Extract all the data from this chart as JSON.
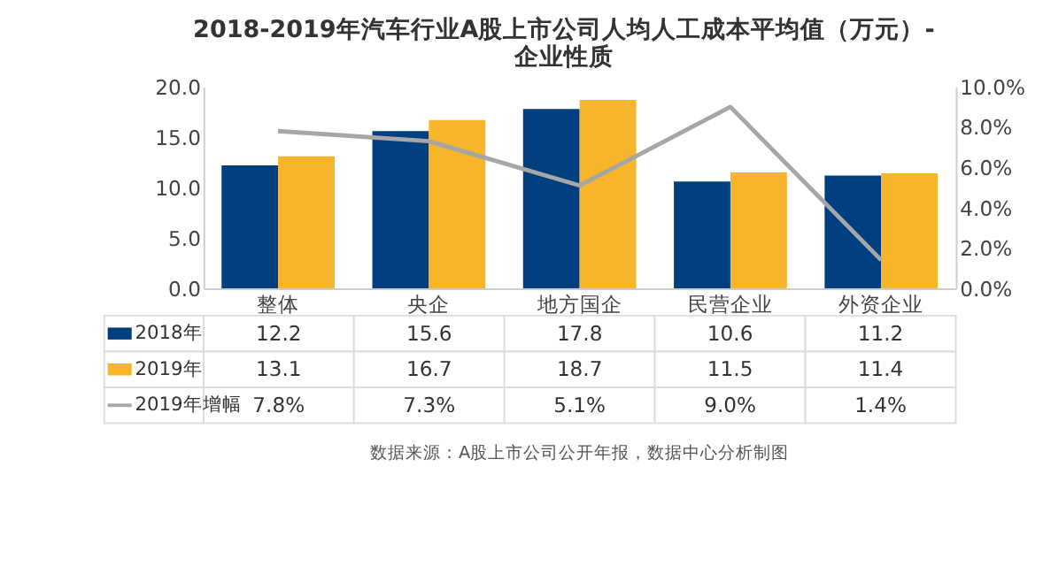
{
  "chart_data": {
    "type": "bar",
    "title": [
      "2018-2019年汽车行业A股上市公司人均人工成本平均值（万元）-",
      "企业性质"
    ],
    "categories": [
      "整体",
      "央企",
      "地方国企",
      "民营企业",
      "外资企业"
    ],
    "series": [
      {
        "name": "2018年",
        "type": "bar",
        "color": "#003f7f",
        "values": [
          12.2,
          15.6,
          17.8,
          10.6,
          11.2
        ],
        "value_labels": [
          "12.2",
          "15.6",
          "17.8",
          "10.6",
          "11.2"
        ]
      },
      {
        "name": "2019年",
        "type": "bar",
        "color": "#f7b52c",
        "values": [
          13.1,
          16.7,
          18.7,
          11.5,
          11.4
        ],
        "value_labels": [
          "13.1",
          "16.7",
          "18.7",
          "11.5",
          "11.4"
        ]
      },
      {
        "name": "2019年增幅",
        "type": "line",
        "axis": "y2",
        "line_style": "solid",
        "color": "#a6a6a6",
        "values": [
          7.8,
          7.3,
          5.1,
          9.0,
          1.4
        ],
        "value_labels": [
          "7.8%",
          "7.3%",
          "5.1%",
          "9.0%",
          "1.4%"
        ]
      }
    ],
    "ylim": [
      0,
      20
    ],
    "yticks": [
      {
        "value": 0,
        "label": "0.0"
      },
      {
        "value": 5,
        "label": "5.0"
      },
      {
        "value": 10,
        "label": "10.0"
      },
      {
        "value": 15,
        "label": "15.0"
      },
      {
        "value": 20,
        "label": "20.0"
      }
    ],
    "y2lim": [
      0,
      10
    ],
    "y2ticks": [
      {
        "value": 0,
        "label": "0.0%"
      },
      {
        "value": 2,
        "label": "2.0%"
      },
      {
        "value": 4,
        "label": "4.0%"
      },
      {
        "value": 6,
        "label": "6.0%"
      },
      {
        "value": 8,
        "label": "8.0%"
      },
      {
        "value": 10,
        "label": "10.0%"
      }
    ],
    "legend": "bottom",
    "grid": false,
    "marker": "none",
    "annotations": [
      "数据来源：A股上市公司公开年报，数据中心分析制图"
    ]
  }
}
